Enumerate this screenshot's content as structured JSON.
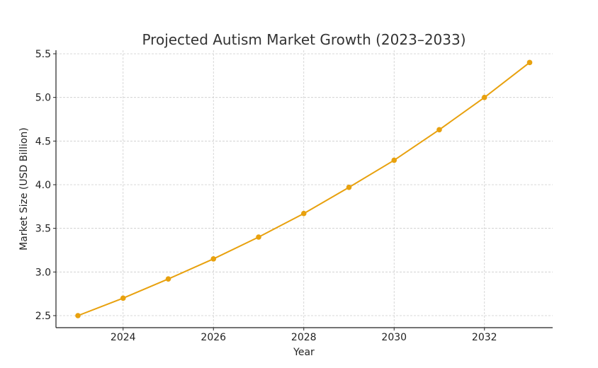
{
  "chart_data": {
    "type": "line",
    "title": "Projected Autism Market Growth (2023–2033)",
    "xlabel": "Year",
    "ylabel": "Market Size (USD Billion)",
    "x": [
      2023,
      2024,
      2025,
      2026,
      2027,
      2028,
      2029,
      2030,
      2031,
      2032,
      2033
    ],
    "series": [
      {
        "name": "Market Size",
        "values": [
          2.5,
          2.7,
          2.92,
          3.15,
          3.4,
          3.67,
          3.97,
          4.28,
          4.63,
          5.0,
          5.4
        ],
        "color": "#E8A10E"
      }
    ],
    "xticks": [
      "2024",
      "2026",
      "2028",
      "2030",
      "2032"
    ],
    "yticks": [
      "2.5",
      "3.0",
      "3.5",
      "4.0",
      "4.5",
      "5.0",
      "5.5"
    ],
    "xlim": [
      2022.5,
      2033.5
    ],
    "ylim": [
      2.36,
      5.54
    ],
    "grid": true
  }
}
